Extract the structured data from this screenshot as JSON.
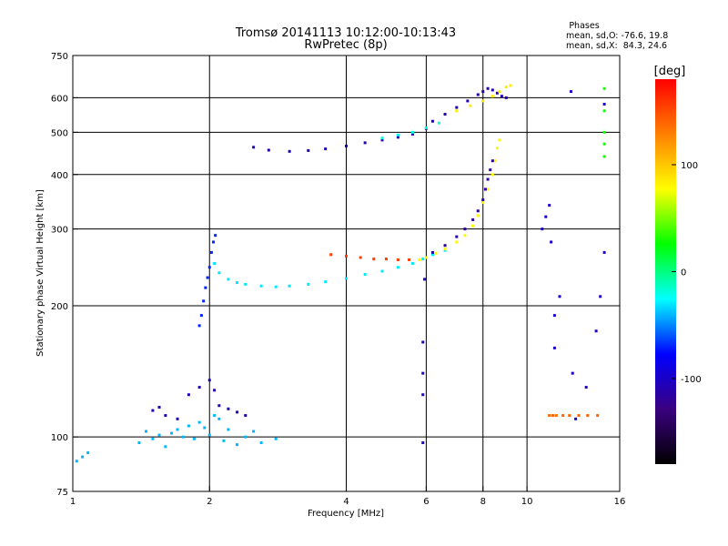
{
  "chart_data": {
    "type": "scatter",
    "title": "Tromsø 20141113 10:12:00-10:13:43",
    "subtitle": "RwPretec (8p)",
    "stats_heading": "Phases",
    "stats_o": "mean, sd,O: -76.6, 19.8",
    "stats_x": "mean, sd,X:  84.3, 24.6",
    "xlabel": "Frequency [MHz]",
    "ylabel": "Stationary phase Virtual Height [km]",
    "xscale": "log",
    "yscale": "log",
    "xlim": [
      1,
      16
    ],
    "ylim": [
      75,
      750
    ],
    "x_ticks": [
      1,
      2,
      4,
      6,
      8,
      10,
      16
    ],
    "y_ticks": [
      75,
      100,
      200,
      300,
      400,
      500,
      600,
      750
    ],
    "x_grid": [
      2,
      4,
      6,
      8,
      10
    ],
    "y_grid": [
      100,
      200,
      300,
      400,
      500,
      600
    ],
    "grid": true,
    "colorbar": {
      "label": "[deg]",
      "range": [
        -180,
        180
      ],
      "ticks": [
        100,
        0,
        -100
      ],
      "colors": [
        "#000000",
        "#3a0080",
        "#0000ff",
        "#00ffff",
        "#00ff00",
        "#ffff00",
        "#ff8000",
        "#ff0000"
      ]
    },
    "series": [
      {
        "freq": [
          1.02,
          1.05,
          1.08,
          1.4,
          1.45,
          1.5,
          1.55,
          1.6,
          1.65,
          1.7,
          1.75,
          1.8,
          1.85,
          1.9,
          1.95,
          2.0,
          2.05,
          2.1,
          2.15,
          2.2,
          2.3,
          2.4,
          2.5,
          2.6,
          2.8
        ],
        "height": [
          88,
          90,
          92,
          97,
          103,
          99,
          101,
          95,
          102,
          104,
          100,
          106,
          99,
          108,
          105,
          101,
          112,
          110,
          98,
          104,
          96,
          100,
          103,
          97,
          99
        ],
        "phase": -40
      },
      {
        "freq": [
          1.5,
          1.55,
          1.6,
          1.7,
          1.8,
          1.9,
          2.0,
          2.05,
          2.1,
          2.2,
          2.3,
          2.4
        ],
        "height": [
          115,
          117,
          112,
          110,
          125,
          130,
          135,
          128,
          118,
          116,
          114,
          112
        ],
        "phase": -110
      },
      {
        "freq": [
          1.9,
          1.92,
          1.94,
          1.96,
          1.98,
          2.0,
          2.02,
          2.04,
          2.06
        ],
        "height": [
          180,
          190,
          205,
          220,
          232,
          245,
          265,
          280,
          290
        ],
        "phase": -70
      },
      {
        "freq": [
          2.05,
          2.1,
          2.2,
          2.3,
          2.4,
          2.6,
          2.8,
          3.0,
          3.3,
          3.6,
          4.0,
          4.4,
          4.8,
          5.2,
          5.6,
          5.9,
          6.2,
          6.6
        ],
        "height": [
          250,
          238,
          230,
          226,
          224,
          222,
          221,
          222,
          224,
          227,
          231,
          236,
          240,
          245,
          250,
          256,
          262,
          268
        ],
        "phase": -30
      },
      {
        "freq": [
          3.7,
          4.0,
          4.3,
          4.6,
          4.9,
          5.2,
          5.5
        ],
        "height": [
          262,
          260,
          258,
          256,
          256,
          255,
          255
        ],
        "phase": 155
      },
      {
        "freq": [
          5.8,
          6.0,
          6.3,
          6.6,
          7.0,
          7.3,
          7.6,
          7.8,
          8.0,
          8.2,
          8.4,
          8.5,
          8.6,
          8.7
        ],
        "height": [
          255,
          258,
          264,
          270,
          280,
          290,
          305,
          322,
          345,
          370,
          400,
          430,
          460,
          480
        ],
        "phase": 80
      },
      {
        "freq": [
          6.2,
          6.6,
          7.0,
          7.3,
          7.6,
          7.8,
          8.0,
          8.1,
          8.2,
          8.3,
          8.4
        ],
        "height": [
          265,
          275,
          288,
          300,
          315,
          330,
          350,
          370,
          390,
          410,
          430
        ],
        "phase": -115
      },
      {
        "freq": [
          2.5,
          2.7,
          3.0,
          3.3,
          3.6,
          4.0,
          4.4,
          4.8,
          5.2,
          5.6,
          6.0
        ],
        "height": [
          462,
          455,
          452,
          454,
          458,
          465,
          473,
          480,
          487,
          495,
          510
        ],
        "phase": -110
      },
      {
        "freq": [
          4.8,
          5.2,
          5.6,
          6.0,
          6.4
        ],
        "height": [
          485,
          493,
          500,
          512,
          525
        ],
        "phase": -20
      },
      {
        "freq": [
          6.2,
          6.6,
          7.0,
          7.4,
          7.8,
          8.0,
          8.2,
          8.4,
          8.6,
          8.8,
          9.0
        ],
        "height": [
          530,
          550,
          570,
          590,
          610,
          620,
          630,
          625,
          615,
          605,
          600
        ],
        "phase": -110
      },
      {
        "freq": [
          7.0,
          7.5,
          8.0,
          8.4,
          8.7,
          9.0,
          9.2
        ],
        "height": [
          560,
          575,
          590,
          605,
          620,
          635,
          640
        ],
        "phase": 85
      },
      {
        "freq": [
          11.2,
          11.4,
          11.6,
          12.0,
          12.4,
          13.0,
          13.6,
          14.3
        ],
        "height": [
          112,
          112,
          112,
          112,
          112,
          112,
          112,
          112
        ],
        "phase": 140
      },
      {
        "freq": [
          5.9,
          5.9,
          5.9,
          5.9,
          5.95,
          10.8,
          11.0,
          11.2,
          11.3,
          11.5,
          11.5,
          11.8,
          12.5,
          12.6,
          12.8,
          13.5,
          14.2,
          14.5,
          14.8,
          14.8
        ],
        "height": [
          97,
          125,
          140,
          165,
          230,
          300,
          320,
          340,
          280,
          160,
          190,
          210,
          620,
          140,
          110,
          130,
          175,
          210,
          265,
          580
        ],
        "phase": -100
      },
      {
        "freq": [
          14.8,
          14.8,
          14.8,
          14.8,
          14.8
        ],
        "height": [
          440,
          470,
          500,
          560,
          630
        ],
        "phase": 30
      }
    ]
  }
}
